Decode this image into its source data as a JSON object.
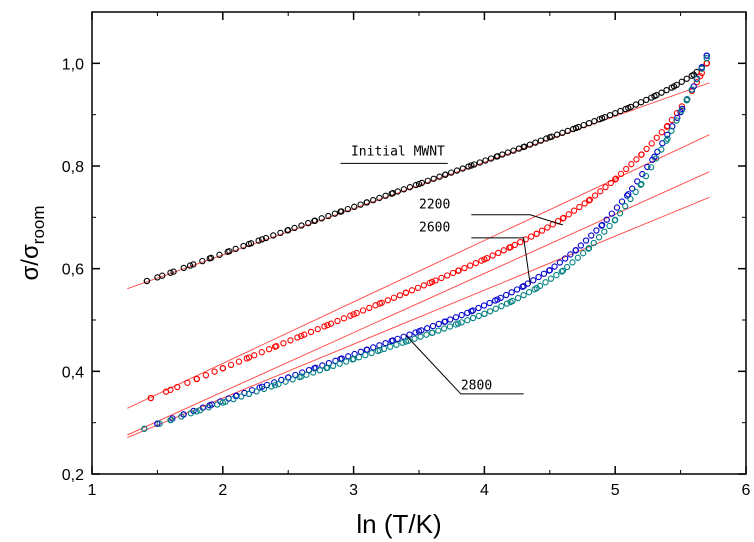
{
  "chart_data": {
    "type": "scatter",
    "title": "",
    "xlabel": "ln (T/K)",
    "ylabel": {
      "main": "σ/σ",
      "sub": "room"
    },
    "xlim": [
      1,
      6
    ],
    "ylim": [
      0.2,
      1.1
    ],
    "xticks": [
      1,
      2,
      3,
      4,
      5,
      6
    ],
    "xtick_labels": [
      "1",
      "2",
      "3",
      "4",
      "5",
      "6"
    ],
    "yticks": [
      0.2,
      0.4,
      0.6,
      0.8,
      1.0
    ],
    "ytick_labels": [
      "0,2",
      "0,4",
      "0,6",
      "0,8",
      "1,0"
    ],
    "grid": false,
    "legend": "none",
    "series": [
      {
        "name": "Initial MWNT",
        "color": "#000000",
        "x": [
          1.42,
          1.5,
          1.6,
          1.75,
          1.9,
          2.05,
          2.2,
          2.3,
          2.5,
          2.7,
          2.9,
          3.1,
          3.3,
          3.5,
          3.7,
          3.9,
          4.1,
          4.3,
          4.5,
          4.7,
          4.9,
          5.1,
          5.3,
          5.45,
          5.6,
          5.7
        ],
        "y": [
          0.576,
          0.583,
          0.592,
          0.606,
          0.62,
          0.634,
          0.648,
          0.657,
          0.675,
          0.693,
          0.711,
          0.729,
          0.747,
          0.765,
          0.783,
          0.801,
          0.819,
          0.837,
          0.856,
          0.874,
          0.893,
          0.913,
          0.936,
          0.955,
          0.978,
          1.0
        ],
        "fit": {
          "x": [
            1.27,
            5.72
          ],
          "y": [
            0.561,
            0.962
          ]
        }
      },
      {
        "name": "2200",
        "color": "#ff0000",
        "x": [
          1.45,
          1.6,
          1.8,
          2.0,
          2.2,
          2.4,
          2.6,
          2.8,
          3.0,
          3.2,
          3.4,
          3.6,
          3.8,
          4.0,
          4.2,
          4.4,
          4.6,
          4.8,
          5.0,
          5.2,
          5.4,
          5.55,
          5.65,
          5.7
        ],
        "y": [
          0.348,
          0.364,
          0.385,
          0.406,
          0.427,
          0.448,
          0.469,
          0.49,
          0.511,
          0.532,
          0.553,
          0.574,
          0.596,
          0.618,
          0.642,
          0.668,
          0.698,
          0.733,
          0.774,
          0.822,
          0.878,
          0.93,
          0.975,
          1.0
        ],
        "fit": {
          "x": [
            1.27,
            5.72
          ],
          "y": [
            0.328,
            0.861
          ]
        }
      },
      {
        "name": "2600",
        "color": "#0000cc",
        "x": [
          1.5,
          1.7,
          1.9,
          2.1,
          2.3,
          2.5,
          2.7,
          2.9,
          3.1,
          3.3,
          3.5,
          3.7,
          3.9,
          4.1,
          4.3,
          4.5,
          4.7,
          4.9,
          5.1,
          5.3,
          5.5,
          5.6,
          5.7
        ],
        "y": [
          0.298,
          0.316,
          0.334,
          0.352,
          0.37,
          0.388,
          0.406,
          0.424,
          0.442,
          0.46,
          0.478,
          0.497,
          0.517,
          0.54,
          0.566,
          0.597,
          0.636,
          0.685,
          0.745,
          0.818,
          0.905,
          0.955,
          1.015
        ],
        "fit": {
          "x": [
            1.27,
            5.72
          ],
          "y": [
            0.276,
            0.789
          ]
        }
      },
      {
        "name": "2800",
        "color": "#008080",
        "x": [
          1.4,
          1.6,
          1.8,
          2.0,
          2.2,
          2.4,
          2.6,
          2.8,
          3.0,
          3.2,
          3.4,
          3.6,
          3.8,
          4.0,
          4.2,
          4.4,
          4.6,
          4.8,
          5.0,
          5.2,
          5.4,
          5.55,
          5.7
        ],
        "y": [
          0.288,
          0.305,
          0.322,
          0.339,
          0.356,
          0.373,
          0.39,
          0.407,
          0.424,
          0.441,
          0.458,
          0.475,
          0.493,
          0.512,
          0.535,
          0.562,
          0.596,
          0.64,
          0.695,
          0.765,
          0.853,
          0.93,
          1.01
        ],
        "fit": {
          "x": [
            1.27,
            5.72
          ],
          "y": [
            0.271,
            0.739
          ]
        }
      }
    ],
    "annotations": [
      {
        "text": "Initial MWNT",
        "leader": {
          "x": [
            2.9,
            3.72
          ],
          "y": [
            0.805,
            0.805
          ]
        }
      },
      {
        "text": "2200",
        "leader": {
          "x": [
            3.9,
            4.35,
            4.6
          ],
          "y": [
            0.705,
            0.705,
            0.685
          ]
        }
      },
      {
        "text": "2600",
        "leader": {
          "x": [
            3.9,
            4.3,
            4.35
          ],
          "y": [
            0.66,
            0.66,
            0.57
          ]
        }
      },
      {
        "text": "2800",
        "leader": {
          "x": [
            3.4,
            3.82,
            4.3
          ],
          "y": [
            0.47,
            0.356,
            0.356
          ]
        }
      }
    ]
  }
}
